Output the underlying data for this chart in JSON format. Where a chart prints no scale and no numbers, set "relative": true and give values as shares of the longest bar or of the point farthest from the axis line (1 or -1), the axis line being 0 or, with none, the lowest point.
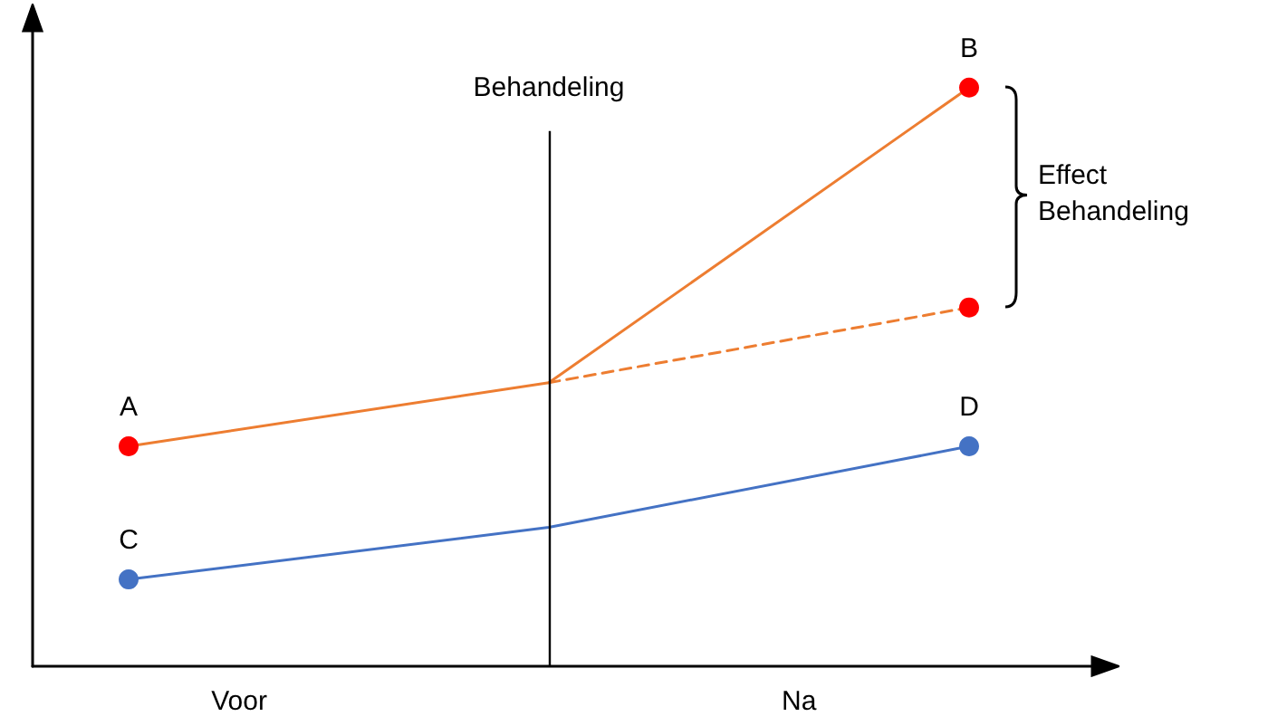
{
  "chart_data": {
    "type": "line",
    "relative": true,
    "grid": false,
    "categories": [
      null,
      null,
      null
    ],
    "series": [
      {
        "color": "#ed7d31",
        "colors": [
          "#ff0000",
          null,
          "#ff0000"
        ],
        "values": [
          0.38,
          0.49,
          1.0
        ],
        "line_style": "solid",
        "marker": "circle"
      },
      {
        "color": "#ed7d31",
        "colors": [
          null,
          null,
          "#ff0000"
        ],
        "values": [
          null,
          0.49,
          0.62
        ],
        "line_style": "dashed",
        "marker": "circle"
      },
      {
        "color": "#4472c4",
        "colors": [
          "#4472c4",
          null,
          "#4472c4"
        ],
        "values": [
          0.15,
          0.24,
          0.38
        ],
        "line_style": "solid",
        "marker": "circle"
      }
    ],
    "annotations": [
      "Behandeling",
      "Voor",
      "Na",
      "Effect Behandeling",
      "A",
      "B",
      "C",
      "D"
    ]
  }
}
